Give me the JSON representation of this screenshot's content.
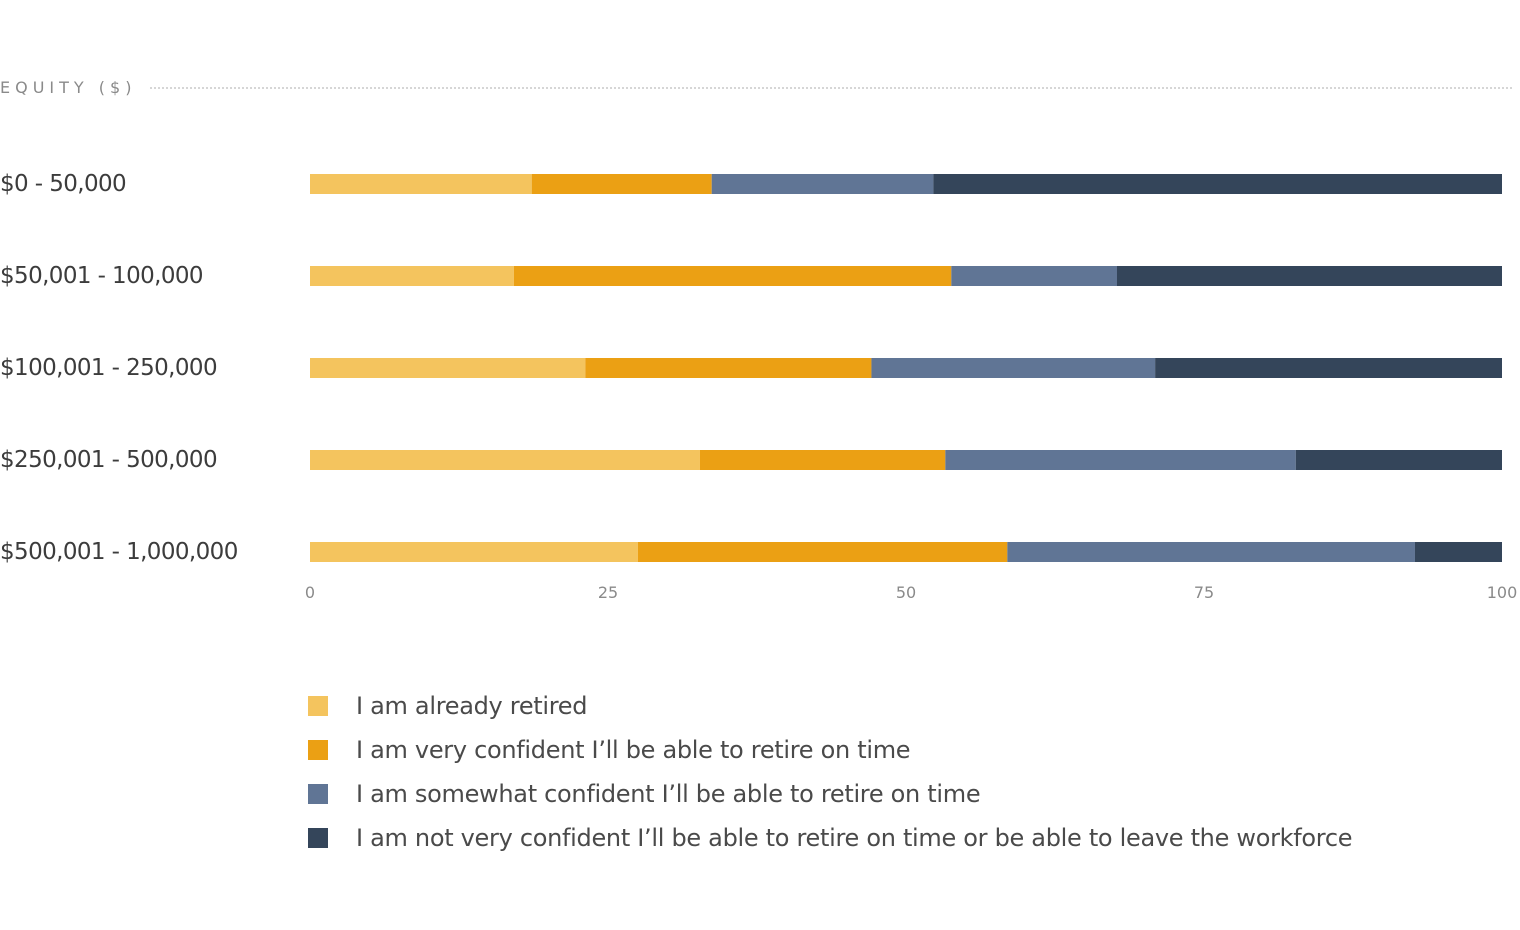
{
  "group_label": "EQUITY ($)",
  "chart_data": {
    "type": "bar",
    "orientation": "horizontal",
    "stacked": true,
    "categories": [
      "$0 - 50,000",
      "$50,001 - 100,000",
      "$100,001 - 250,000",
      "$250,001 - 500,000",
      "$500,001 - 1,000,000"
    ],
    "series": [
      {
        "name": "I am already retired",
        "color": "#f4c45e",
        "values": [
          18.6,
          17.1,
          23.1,
          32.7,
          27.5
        ]
      },
      {
        "name": "I am very confident I’ll be able to retire on time",
        "color": "#eba014",
        "values": [
          15.1,
          36.7,
          24.0,
          20.6,
          31.0
        ]
      },
      {
        "name": "I am somewhat confident I’ll be able to retire on time",
        "color": "#607595",
        "values": [
          18.6,
          13.9,
          23.8,
          29.4,
          34.2
        ]
      },
      {
        "name": "I am not very confident I’ll be able to retire on time or be able to leave the workforce",
        "color": "#34455a",
        "values": [
          47.7,
          32.3,
          29.1,
          17.3,
          7.3
        ]
      }
    ],
    "xlim": [
      0,
      100
    ],
    "xticks": [
      "0",
      "25",
      "50",
      "75",
      "100"
    ],
    "grid": false,
    "legend_position": "bottom"
  }
}
